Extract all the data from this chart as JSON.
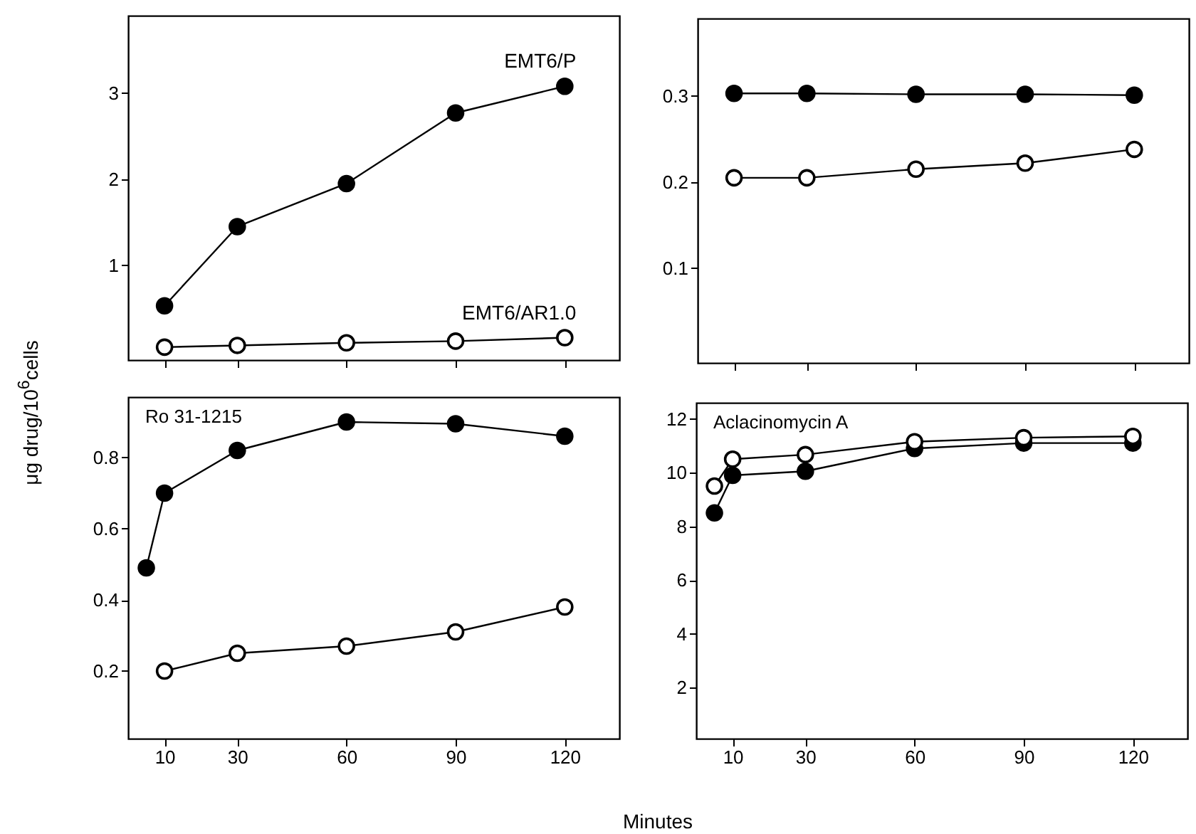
{
  "chart_data": [
    {
      "type": "line",
      "ylabel": "μg drug/10$^{6}$cells",
      "x": [
        10,
        30,
        60,
        90,
        120
      ],
      "xlim": [
        0,
        135
      ],
      "xticks": [
        10,
        30,
        60,
        90,
        120
      ],
      "ylim": [
        -0.1,
        3.9
      ],
      "yticks": [
        1,
        2,
        3
      ],
      "tick_labels": "y",
      "marker": "circle",
      "grid": false,
      "series": [
        {
          "name": "EMT6/P",
          "color": "#000000",
          "values": [
            0.53,
            1.45,
            1.95,
            2.77,
            3.08
          ]
        },
        {
          "name": "EMT6/AR1.0",
          "color": "#000000",
          "values": [
            0.05,
            0.07,
            0.1,
            0.12,
            0.16
          ]
        }
      ]
    },
    {
      "type": "line",
      "x": [
        10,
        30,
        60,
        90,
        120
      ],
      "xlim": [
        0,
        135
      ],
      "xticks": [
        10,
        30,
        60,
        90,
        120
      ],
      "ylim": [
        -0.01,
        0.39
      ],
      "yticks": [
        0.1,
        0.2,
        0.3
      ],
      "tick_labels": "y",
      "marker": "circle",
      "grid": false,
      "series": [
        {
          "color": "#000000",
          "values": [
            0.303,
            0.303,
            0.302,
            0.302,
            0.301
          ]
        },
        {
          "color": "#000000",
          "values": [
            0.205,
            0.205,
            0.215,
            0.222,
            0.238
          ]
        }
      ]
    },
    {
      "type": "line",
      "title": "Ro 31-1215",
      "xlabel": "Minutes",
      "xlim": [
        0,
        135
      ],
      "xticks": [
        10,
        30,
        60,
        90,
        120
      ],
      "ylim": [
        0.01,
        0.97
      ],
      "yticks": [
        0.2,
        0.4,
        0.6,
        0.8
      ],
      "marker": "circle",
      "grid": false,
      "series": [
        {
          "color": "#000000",
          "x": [
            5,
            10,
            30,
            60,
            90,
            120
          ],
          "values": [
            0.49,
            0.7,
            0.82,
            0.9,
            0.895,
            0.86
          ]
        },
        {
          "color": "#000000",
          "x": [
            10,
            30,
            60,
            90,
            120
          ],
          "values": [
            0.2,
            0.25,
            0.27,
            0.31,
            0.38
          ]
        }
      ]
    },
    {
      "type": "line",
      "title": "Aclacinomycin A",
      "x": [
        5,
        10,
        30,
        60,
        90,
        120
      ],
      "xlim": [
        0,
        135
      ],
      "xticks": [
        10,
        30,
        60,
        90,
        120
      ],
      "ylim": [
        0.1,
        12.6
      ],
      "yticks": [
        2,
        4,
        6,
        8,
        10,
        12
      ],
      "marker": "circle",
      "grid": false,
      "series": [
        {
          "color": "#000000",
          "values": [
            8.5,
            9.9,
            10.05,
            10.9,
            11.1,
            11.1
          ]
        },
        {
          "color": "#000000",
          "values": [
            9.5,
            10.5,
            10.67,
            11.15,
            11.3,
            11.35
          ]
        }
      ]
    }
  ]
}
